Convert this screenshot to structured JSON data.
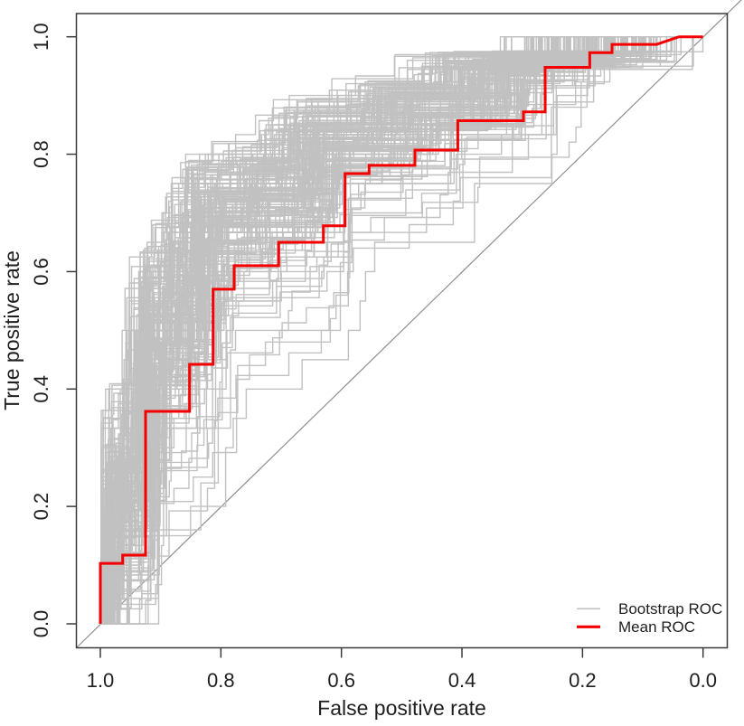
{
  "chart_data": {
    "type": "line",
    "subtype": "roc-step-curves",
    "title": "",
    "xlabel": "False positive rate",
    "ylabel": "True positive rate",
    "grid": false,
    "x_axis": {
      "reversed": true,
      "range": [
        1.0,
        0.0
      ],
      "ticks": [
        1.0,
        0.8,
        0.6,
        0.4,
        0.2,
        0.0
      ],
      "tick_labels": [
        "1.0",
        "0.8",
        "0.6",
        "0.4",
        "0.2",
        "0.0"
      ]
    },
    "y_axis": {
      "range": [
        0.0,
        1.0
      ],
      "ticks": [
        0.0,
        0.2,
        0.4,
        0.6,
        0.8,
        1.0
      ],
      "tick_labels": [
        "0.0",
        "0.2",
        "0.4",
        "0.6",
        "0.8",
        "1.0"
      ]
    },
    "legend": {
      "position": "bottom-right",
      "entries": [
        "Bootstrap ROC",
        "Mean ROC"
      ]
    },
    "reference_line": {
      "description": "chance diagonal from (FPR 1.0, TPR 0.0) to (FPR 0.0, TPR 1.0), extends past top-right plot corner",
      "color": "#8f8f8f",
      "line_width": 1.2
    },
    "series": [
      {
        "name": "Mean ROC",
        "style": "step",
        "color": "#f40000",
        "line_width": 3,
        "points_fpr_tpr": [
          [
            1.0,
            0.0
          ],
          [
            1.0,
            0.103
          ],
          [
            0.963,
            0.103
          ],
          [
            0.963,
            0.117
          ],
          [
            0.925,
            0.117
          ],
          [
            0.925,
            0.362
          ],
          [
            0.852,
            0.362
          ],
          [
            0.852,
            0.442
          ],
          [
            0.813,
            0.442
          ],
          [
            0.813,
            0.57
          ],
          [
            0.778,
            0.57
          ],
          [
            0.778,
            0.61
          ],
          [
            0.704,
            0.61
          ],
          [
            0.704,
            0.65
          ],
          [
            0.63,
            0.65
          ],
          [
            0.63,
            0.678
          ],
          [
            0.594,
            0.678
          ],
          [
            0.594,
            0.767
          ],
          [
            0.554,
            0.767
          ],
          [
            0.554,
            0.781
          ],
          [
            0.478,
            0.781
          ],
          [
            0.478,
            0.807
          ],
          [
            0.407,
            0.807
          ],
          [
            0.407,
            0.857
          ],
          [
            0.298,
            0.857
          ],
          [
            0.298,
            0.872
          ],
          [
            0.262,
            0.872
          ],
          [
            0.262,
            0.948
          ],
          [
            0.188,
            0.948
          ],
          [
            0.188,
            0.973
          ],
          [
            0.151,
            0.973
          ],
          [
            0.151,
            0.987
          ],
          [
            0.077,
            0.987
          ],
          [
            0.04,
            1.0
          ],
          [
            0.0,
            1.0
          ]
        ]
      },
      {
        "name": "Bootstrap ROC",
        "style": "step-ensemble",
        "color": "#c1c1c1",
        "line_width": 1.4,
        "count": 180,
        "seed": 42,
        "steps_min": 18,
        "steps_max": 42,
        "description": "cloud of bootstrap ROC step curves spread around the mean ROC, from (FPR 1.0, TPR 0.0) to (FPR 0.0, TPR 1.0)"
      }
    ],
    "frame_color": "#3a3a3a",
    "legend_line_lengths": {
      "bootstrap": 26,
      "mean": 26
    }
  }
}
